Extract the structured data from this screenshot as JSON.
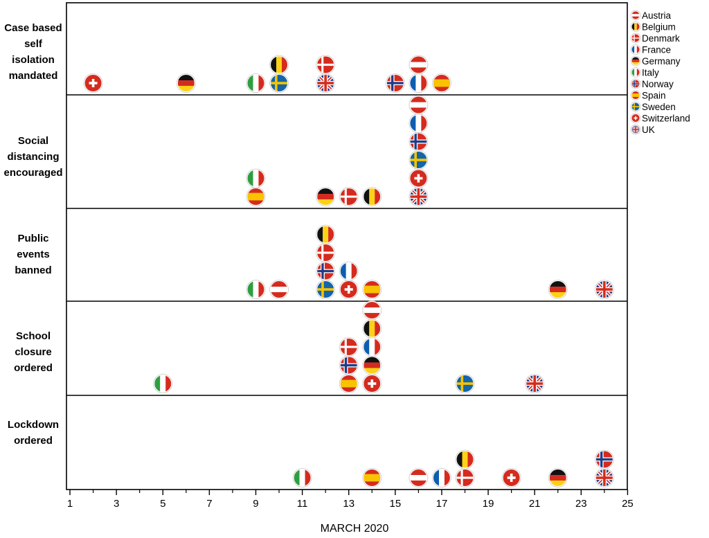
{
  "chart_data": {
    "type": "scatter",
    "title": "",
    "xlabel": "MARCH 2020",
    "xlim": [
      1,
      25
    ],
    "xticks": [
      1,
      3,
      5,
      7,
      9,
      11,
      13,
      15,
      17,
      19,
      21,
      23,
      25
    ],
    "rows": [
      {
        "label": [
          "Case based",
          "self",
          "isolation",
          "mandated"
        ],
        "points": [
          {
            "country": "Switzerland",
            "x": 2
          },
          {
            "country": "Germany",
            "x": 6
          },
          {
            "country": "Italy",
            "x": 9
          },
          {
            "country": "Sweden",
            "x": 10
          },
          {
            "country": "Belgium",
            "x": 10
          },
          {
            "country": "UK",
            "x": 12
          },
          {
            "country": "Denmark",
            "x": 12
          },
          {
            "country": "Norway",
            "x": 15
          },
          {
            "country": "France",
            "x": 16
          },
          {
            "country": "Austria",
            "x": 16
          },
          {
            "country": "Spain",
            "x": 17
          }
        ]
      },
      {
        "label": [
          "Social",
          "distancing",
          "encouraged"
        ],
        "points": [
          {
            "country": "Spain",
            "x": 9
          },
          {
            "country": "Italy",
            "x": 9
          },
          {
            "country": "Germany",
            "x": 12
          },
          {
            "country": "Denmark",
            "x": 13
          },
          {
            "country": "Belgium",
            "x": 14
          },
          {
            "country": "UK",
            "x": 16
          },
          {
            "country": "Switzerland",
            "x": 16
          },
          {
            "country": "Sweden",
            "x": 16
          },
          {
            "country": "Norway",
            "x": 16
          },
          {
            "country": "France",
            "x": 16
          },
          {
            "country": "Austria",
            "x": 16
          }
        ]
      },
      {
        "label": [
          "Public",
          "events",
          "banned"
        ],
        "points": [
          {
            "country": "Italy",
            "x": 9
          },
          {
            "country": "Austria",
            "x": 10
          },
          {
            "country": "Sweden",
            "x": 12
          },
          {
            "country": "Norway",
            "x": 12
          },
          {
            "country": "Denmark",
            "x": 12
          },
          {
            "country": "Belgium",
            "x": 12
          },
          {
            "country": "Switzerland",
            "x": 13
          },
          {
            "country": "France",
            "x": 13
          },
          {
            "country": "Spain",
            "x": 14
          },
          {
            "country": "Germany",
            "x": 22
          },
          {
            "country": "UK",
            "x": 24
          }
        ]
      },
      {
        "label": [
          "School",
          "closure",
          "ordered"
        ],
        "points": [
          {
            "country": "Italy",
            "x": 5
          },
          {
            "country": "Spain",
            "x": 13
          },
          {
            "country": "Norway",
            "x": 13
          },
          {
            "country": "Denmark",
            "x": 13
          },
          {
            "country": "Switzerland",
            "x": 14
          },
          {
            "country": "Germany",
            "x": 14
          },
          {
            "country": "France",
            "x": 14
          },
          {
            "country": "Belgium",
            "x": 14
          },
          {
            "country": "Austria",
            "x": 14
          },
          {
            "country": "Sweden",
            "x": 18
          },
          {
            "country": "UK",
            "x": 21
          }
        ]
      },
      {
        "label": [
          "Lockdown",
          "ordered"
        ],
        "points": [
          {
            "country": "Italy",
            "x": 11
          },
          {
            "country": "Spain",
            "x": 14
          },
          {
            "country": "Austria",
            "x": 16
          },
          {
            "country": "France",
            "x": 17
          },
          {
            "country": "Denmark",
            "x": 18
          },
          {
            "country": "Belgium",
            "x": 18
          },
          {
            "country": "Switzerland",
            "x": 20
          },
          {
            "country": "Germany",
            "x": 22
          },
          {
            "country": "UK",
            "x": 24
          },
          {
            "country": "Norway",
            "x": 24
          }
        ]
      }
    ],
    "legend": {
      "placement": "right",
      "entries": [
        "Austria",
        "Belgium",
        "Denmark",
        "France",
        "Germany",
        "Italy",
        "Norway",
        "Spain",
        "Sweden",
        "Switzerland",
        "UK"
      ],
      "entry_labels": [
        "Austria",
        "Belgium",
        "Denmark",
        "France",
        "Germany",
        "Italy",
        "Norway",
        "Spain",
        "Sweden",
        "Switzerland",
        " UK"
      ]
    },
    "flag_icons": {
      "Austria": "austria-flag-icon",
      "Belgium": "belgium-flag-icon",
      "Denmark": "denmark-flag-icon",
      "France": "france-flag-icon",
      "Germany": "germany-flag-icon",
      "Italy": "italy-flag-icon",
      "Norway": "norway-flag-icon",
      "Spain": "spain-flag-icon",
      "Sweden": "sweden-flag-icon",
      "Switzerland": "switzerland-flag-icon",
      "UK": "uk-flag-icon"
    },
    "colors": {
      "red": "#d52b1e",
      "black": "#111111",
      "yellow": "#fcd116",
      "blue": "#0d5eaf",
      "green": "#2f9e41",
      "white": "#ffffff",
      "navy": "#1f3c88",
      "sweden_blue": "#1565a8",
      "sweden_yellow": "#f5c400",
      "spain_red": "#d52b1e",
      "spain_yellow": "#f9c300"
    },
    "grid": false
  }
}
